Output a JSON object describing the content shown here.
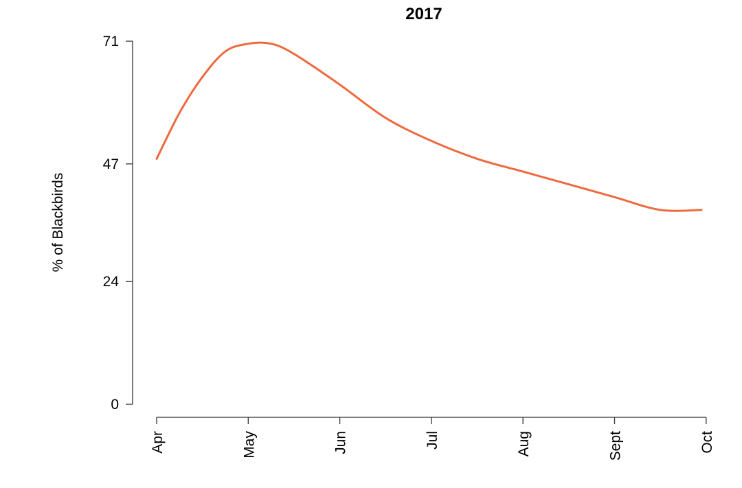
{
  "chart_data": {
    "type": "line",
    "title": "2017",
    "xlabel": "",
    "ylabel": "% of Blackbirds",
    "x_ticks": [
      "Apr",
      "May",
      "Jun",
      "Jul",
      "Aug",
      "Sept",
      "Oct"
    ],
    "y_ticks": [
      "71",
      "47",
      "24",
      "0"
    ],
    "ylim": [
      0,
      71
    ],
    "grid": false,
    "legend": "none",
    "line_color": "#EE6A3E",
    "x": [
      0,
      0.25,
      0.5,
      0.75,
      1,
      1.25,
      1.5,
      2,
      2.5,
      3,
      3.5,
      4,
      4.5,
      5,
      5.5,
      5.95
    ],
    "y": [
      48,
      57,
      64,
      69,
      70.5,
      70.5,
      68.5,
      62.5,
      56,
      51.5,
      48,
      45.5,
      43,
      40.5,
      38,
      38
    ],
    "series": [
      {
        "x": [
          0,
          0.25,
          0.5,
          0.75,
          1,
          1.25,
          1.5,
          2,
          2.5,
          3,
          3.5,
          4,
          4.5,
          5,
          5.5,
          5.95
        ],
        "values": [
          48,
          57,
          64,
          69,
          70.5,
          70.5,
          68.5,
          62.5,
          56,
          51.5,
          48,
          45.5,
          43,
          40.5,
          38,
          38
        ]
      }
    ]
  }
}
